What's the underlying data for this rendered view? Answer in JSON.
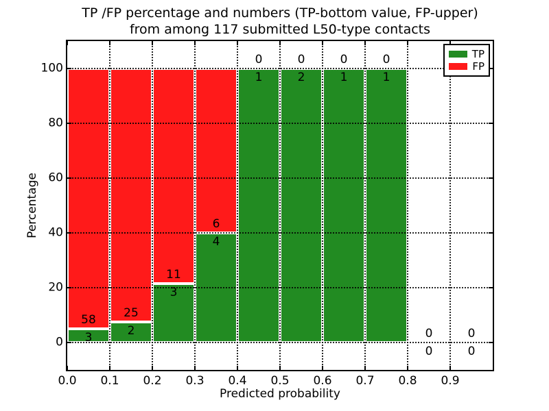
{
  "figure": {
    "title_line1": "TP /FP percentage and numbers (TP-bottom value, FP-upper)",
    "title_line2": "from among 117 submitted L50-type contacts",
    "background": "#FFFFFF"
  },
  "axes": {
    "xlabel": "Predicted probability",
    "ylabel": "Percentage",
    "xlim": [
      0.0,
      1.0
    ],
    "ylim": [
      -10,
      110
    ],
    "x_tick_values": [
      0.0,
      0.1,
      0.2,
      0.3,
      0.4,
      0.5,
      0.6,
      0.7,
      0.8,
      0.9
    ],
    "x_tick_labels": [
      "0.0",
      "0.1",
      "0.2",
      "0.3",
      "0.4",
      "0.5",
      "0.6",
      "0.7",
      "0.8",
      "0.9"
    ],
    "y_tick_values": [
      0,
      20,
      40,
      60,
      80,
      100
    ],
    "y_tick_labels": [
      "0",
      "20",
      "40",
      "60",
      "80",
      "100"
    ],
    "x_grid_values": [
      0.1,
      0.2,
      0.3,
      0.4,
      0.5,
      0.6,
      0.7,
      0.8,
      0.9
    ],
    "y_grid_values": [
      0,
      20,
      40,
      60,
      80,
      100
    ],
    "grid_style": "dotted",
    "frame_color": "#000000"
  },
  "legend": {
    "position": "upper-right",
    "entries": [
      {
        "label": "TP",
        "color": "#228B22"
      },
      {
        "label": "FP",
        "color": "#FF1A1A"
      }
    ]
  },
  "colors": {
    "tp": "#228B22",
    "fp": "#FF1A1A",
    "bar_edge": "#FFFFFF",
    "grid": "#000000",
    "text": "#000000",
    "background": "#FFFFFF"
  },
  "chart_data": {
    "type": "bar",
    "stacked": true,
    "title": "TP /FP percentage and numbers (TP-bottom value, FP-upper) from among 117 submitted L50-type contacts",
    "xlabel": "Predicted probability",
    "ylabel": "Percentage",
    "xlim": [
      0.0,
      1.0
    ],
    "ylim": [
      -10,
      110
    ],
    "grid": true,
    "legend_position": "upper-right",
    "total_contacts": 117,
    "bar_width": 0.1,
    "bins": [
      {
        "x0": 0.0,
        "x1": 0.1,
        "tp_count": 3,
        "fp_count": 58,
        "tp_pct": 4.92,
        "fp_pct": 95.08
      },
      {
        "x0": 0.1,
        "x1": 0.2,
        "tp_count": 2,
        "fp_count": 25,
        "tp_pct": 7.41,
        "fp_pct": 92.59
      },
      {
        "x0": 0.2,
        "x1": 0.3,
        "tp_count": 3,
        "fp_count": 11,
        "tp_pct": 21.43,
        "fp_pct": 78.57
      },
      {
        "x0": 0.3,
        "x1": 0.4,
        "tp_count": 4,
        "fp_count": 6,
        "tp_pct": 40.0,
        "fp_pct": 60.0
      },
      {
        "x0": 0.4,
        "x1": 0.5,
        "tp_count": 1,
        "fp_count": 0,
        "tp_pct": 100.0,
        "fp_pct": 0.0
      },
      {
        "x0": 0.5,
        "x1": 0.6,
        "tp_count": 2,
        "fp_count": 0,
        "tp_pct": 100.0,
        "fp_pct": 0.0
      },
      {
        "x0": 0.6,
        "x1": 0.7,
        "tp_count": 1,
        "fp_count": 0,
        "tp_pct": 100.0,
        "fp_pct": 0.0
      },
      {
        "x0": 0.7,
        "x1": 0.8,
        "tp_count": 1,
        "fp_count": 0,
        "tp_pct": 100.0,
        "fp_pct": 0.0
      },
      {
        "x0": 0.8,
        "x1": 0.9,
        "tp_count": 0,
        "fp_count": 0,
        "tp_pct": 0.0,
        "fp_pct": 0.0
      },
      {
        "x0": 0.9,
        "x1": 1.0,
        "tp_count": 0,
        "fp_count": 0,
        "tp_pct": 0.0,
        "fp_pct": 0.0
      }
    ],
    "series": [
      {
        "name": "TP",
        "color": "#228B22",
        "counts": [
          3,
          2,
          3,
          4,
          1,
          2,
          1,
          1,
          0,
          0
        ]
      },
      {
        "name": "FP",
        "color": "#FF1A1A",
        "counts": [
          58,
          25,
          11,
          6,
          0,
          0,
          0,
          0,
          0,
          0
        ]
      }
    ]
  }
}
